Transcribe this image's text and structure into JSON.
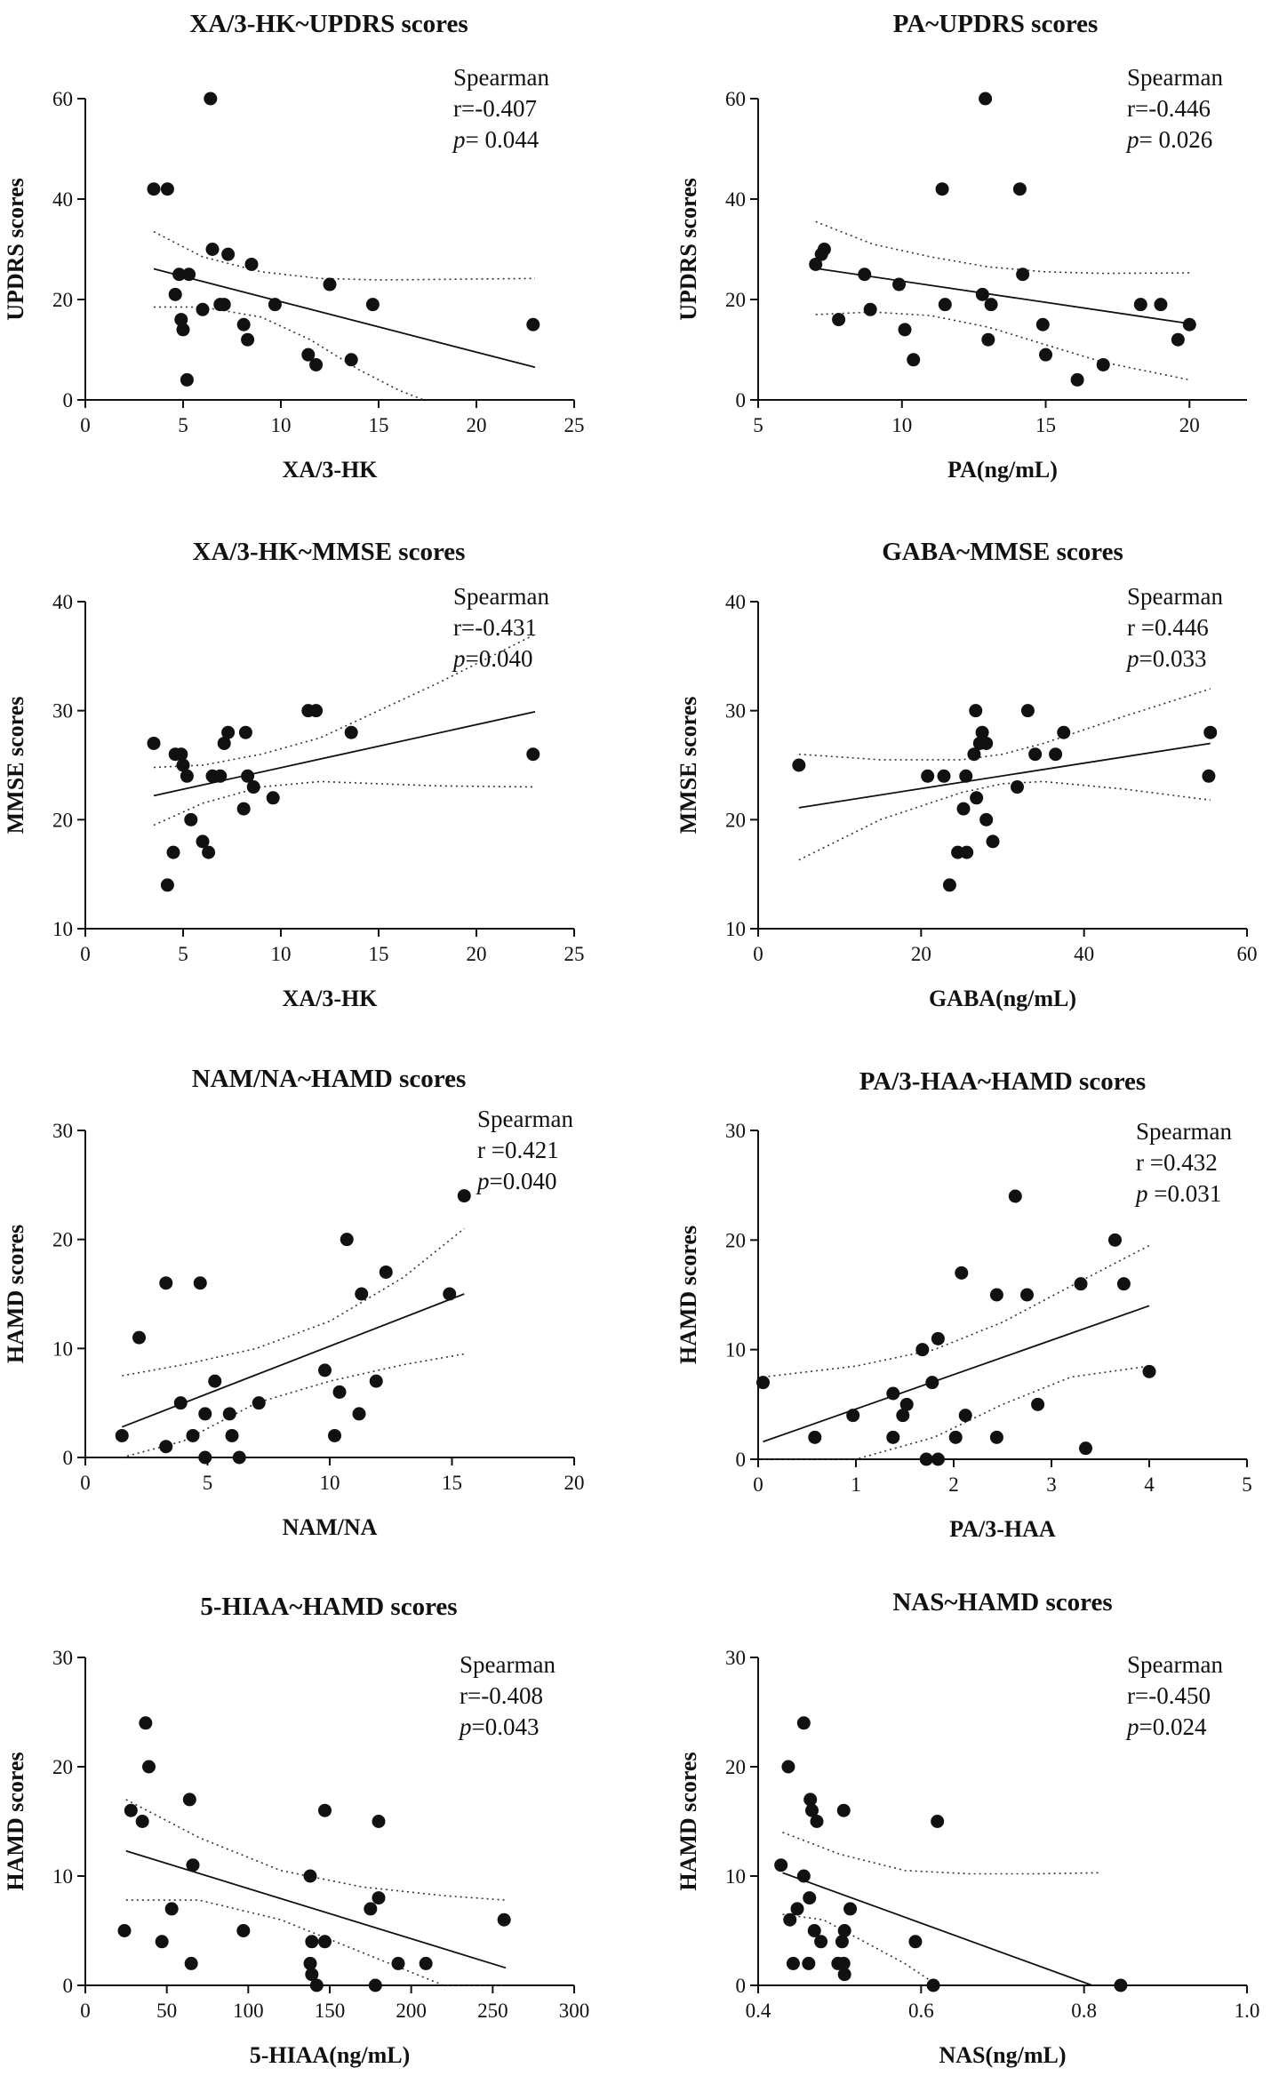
{
  "chart_data": [
    {
      "type": "scatter",
      "title": "XA/3-HK~UPDRS scores",
      "xlabel": "XA/3-HK",
      "ylabel": "UPDRS scores",
      "xlim": [
        0,
        25
      ],
      "ylim": [
        0,
        60
      ],
      "xticks": [
        "0",
        "5",
        "10",
        "15",
        "20",
        "25"
      ],
      "yticks": [
        "0",
        "20",
        "40",
        "60"
      ],
      "stats": {
        "method": "Spearman",
        "r": "r=-0.407",
        "p_label": "p",
        "p_value": "= 0.044"
      },
      "fit": {
        "x": [
          3.5,
          23
        ],
        "y": [
          26.1,
          6.5
        ]
      },
      "ci_upper": {
        "x": [
          3.5,
          6,
          9,
          12,
          15,
          18,
          23
        ],
        "y": [
          33.5,
          28.5,
          25.5,
          24.2,
          23.9,
          24,
          24.2
        ]
      },
      "ci_lower": {
        "x": [
          3.5,
          6,
          9,
          11.5,
          14,
          16,
          17.3
        ],
        "y": [
          18.5,
          18.5,
          16.5,
          12,
          6,
          2,
          0
        ]
      },
      "points": {
        "x": [
          3.5,
          4.2,
          6.4,
          6.5,
          7.3,
          8.5,
          4.6,
          4.8,
          5.3,
          4.9,
          5.0,
          5.2,
          6.0,
          6.9,
          7.1,
          8.1,
          8.3,
          9.7,
          11.4,
          11.8,
          12.5,
          13.6,
          14.7,
          22.9
        ],
        "y": [
          42,
          42,
          60,
          30,
          29,
          27,
          21,
          25,
          25,
          16,
          14,
          4,
          18,
          19,
          19,
          15,
          12,
          19,
          9,
          7,
          23,
          8,
          19,
          15
        ]
      }
    },
    {
      "type": "scatter",
      "title": "PA~UPDRS scores",
      "xlabel": "PA(ng/mL)",
      "ylabel": "UPDRS scores",
      "xlim": [
        5,
        22
      ],
      "ylim": [
        0,
        60
      ],
      "xticks": [
        "5",
        "10",
        "15",
        "20"
      ],
      "yticks": [
        "0",
        "20",
        "40",
        "60"
      ],
      "stats": {
        "method": "Spearman",
        "r": "r=-0.446",
        "p_label": "p",
        "p_value": "= 0.026"
      },
      "fit": {
        "x": [
          7,
          20
        ],
        "y": [
          26.2,
          15.2
        ]
      },
      "ci_upper": {
        "x": [
          7,
          9,
          11,
          13,
          15,
          17,
          20
        ],
        "y": [
          35.5,
          31,
          28.5,
          26.5,
          25.5,
          25.2,
          25.3
        ]
      },
      "ci_lower": {
        "x": [
          7,
          9,
          11,
          13,
          15,
          17,
          20
        ],
        "y": [
          17,
          17.5,
          16.8,
          14.5,
          11,
          7.5,
          4
        ]
      },
      "points": {
        "x": [
          12.9,
          11.4,
          14.1,
          7.3,
          7.2,
          7.0,
          8.7,
          9.9,
          12.8,
          14.2,
          7.8,
          8.9,
          10.1,
          10.4,
          11.5,
          13.1,
          13.0,
          14.9,
          15.0,
          16.1,
          17.0,
          18.3,
          19.0,
          19.6,
          20.0
        ],
        "y": [
          60,
          42,
          42,
          30,
          29,
          27,
          25,
          23,
          21,
          25,
          16,
          18,
          14,
          8,
          19,
          19,
          12,
          15,
          9,
          4,
          7,
          19,
          19,
          12,
          15
        ]
      }
    },
    {
      "type": "scatter",
      "title": "XA/3-HK~MMSE scores",
      "xlabel": "XA/3-HK",
      "ylabel": "MMSE scores",
      "xlim": [
        0,
        25
      ],
      "ylim": [
        10,
        40
      ],
      "xticks": [
        "0",
        "5",
        "10",
        "15",
        "20",
        "25"
      ],
      "yticks": [
        "10",
        "20",
        "30",
        "40"
      ],
      "stats": {
        "method": "Spearman",
        "r": "r=-0.431",
        "p_label": "p",
        "p_value": "=0.040"
      },
      "fit": {
        "x": [
          3.5,
          23
        ],
        "y": [
          22.2,
          29.9
        ]
      },
      "ci_upper": {
        "x": [
          3.5,
          6,
          9,
          12,
          15,
          18,
          23
        ],
        "y": [
          24.8,
          25,
          26,
          27.5,
          30,
          32.5,
          37
        ]
      },
      "ci_lower": {
        "x": [
          3.5,
          6,
          9,
          12,
          15,
          18,
          23
        ],
        "y": [
          19.5,
          21.5,
          23,
          23.5,
          23.3,
          23.1,
          23
        ]
      },
      "points": {
        "x": [
          3.5,
          4.6,
          4.9,
          5.0,
          5.2,
          6.5,
          6.9,
          7.1,
          7.3,
          8.2,
          8.3,
          8.6,
          9.6,
          11.4,
          11.8,
          13.6,
          22.9,
          4.5,
          5.4,
          6.0,
          6.3,
          8.1,
          4.2
        ],
        "y": [
          27,
          26,
          26,
          25,
          24,
          24,
          24,
          27,
          28,
          28,
          24,
          23,
          22,
          30,
          30,
          28,
          26,
          17,
          20,
          18,
          17,
          21,
          14
        ]
      }
    },
    {
      "type": "scatter",
      "title": "GABA~MMSE scores",
      "xlabel": "GABA(ng/mL)",
      "ylabel": "MMSE scores",
      "xlim": [
        0,
        60
      ],
      "ylim": [
        10,
        40
      ],
      "xticks": [
        "0",
        "20",
        "40",
        "60"
      ],
      "yticks": [
        "10",
        "20",
        "30",
        "40"
      ],
      "stats": {
        "method": "Spearman",
        "r": "r =0.446",
        "p_label": "p",
        "p_value": "=0.033"
      },
      "fit": {
        "x": [
          5,
          55.5
        ],
        "y": [
          21.1,
          27
        ]
      },
      "ci_upper": {
        "x": [
          5,
          15,
          25,
          30,
          35,
          45,
          55.5
        ],
        "y": [
          26,
          25.5,
          25.5,
          26,
          27,
          29.5,
          32
        ]
      },
      "ci_lower": {
        "x": [
          5,
          15,
          25,
          30,
          35,
          45,
          55.5
        ],
        "y": [
          16.3,
          20,
          22.5,
          23.3,
          23.5,
          22.8,
          21.8
        ]
      },
      "points": {
        "x": [
          5,
          20.8,
          22.8,
          26.7,
          27.5,
          27.2,
          28.0,
          33.1,
          34.0,
          36.5,
          37.5,
          55.5,
          55.3,
          31.8,
          26.5,
          26.8,
          25.5,
          25.2,
          28.0,
          28.8,
          24.5,
          25.6,
          23.5
        ],
        "y": [
          25,
          24,
          24,
          30,
          28,
          27,
          27,
          30,
          26,
          26,
          28,
          28,
          24,
          23,
          26,
          22,
          24,
          21,
          20,
          18,
          17,
          17,
          14
        ]
      }
    },
    {
      "type": "scatter",
      "title": "NAM/NA~HAMD scores",
      "xlabel": "NAM/NA",
      "ylabel": "HAMD scores",
      "xlim": [
        0,
        20
      ],
      "ylim": [
        0,
        30
      ],
      "xticks": [
        "0",
        "5",
        "10",
        "15",
        "20"
      ],
      "yticks": [
        "0",
        "10",
        "20",
        "30"
      ],
      "stats": {
        "method": "Spearman",
        "r": "r =0.421",
        "p_label": "p",
        "p_value": "=0.040"
      },
      "fit": {
        "x": [
          1.5,
          15.5
        ],
        "y": [
          2.8,
          15
        ]
      },
      "ci_upper": {
        "x": [
          1.5,
          4,
          7,
          10,
          13,
          15.5
        ],
        "y": [
          7.5,
          8.5,
          10,
          12.5,
          16.5,
          21
        ]
      },
      "ci_lower": {
        "x": [
          1.5,
          4,
          7,
          10,
          13,
          15.5
        ],
        "y": [
          -1.5,
          1.5,
          5,
          7,
          8.5,
          9.5
        ]
      },
      "points": {
        "x": [
          15.5,
          10.7,
          12.3,
          11.3,
          14.9,
          3.3,
          4.7,
          2.2,
          9.8,
          10.4,
          11.9,
          5.3,
          3.9,
          5.9,
          4.9,
          7.1,
          11.2,
          1.5,
          4.4,
          6.0,
          3.3,
          10.2,
          4.9,
          6.3
        ],
        "y": [
          24,
          20,
          17,
          15,
          15,
          16,
          16,
          11,
          8,
          6,
          7,
          7,
          5,
          4,
          4,
          5,
          4,
          2,
          2,
          2,
          1,
          2,
          0,
          0
        ]
      }
    },
    {
      "type": "scatter",
      "title": "PA/3-HAA~HAMD scores",
      "xlabel": "PA/3-HAA",
      "ylabel": "HAMD scores",
      "xlim": [
        0,
        5
      ],
      "ylim": [
        0,
        30
      ],
      "xticks": [
        "0",
        "1",
        "2",
        "3",
        "4",
        "5"
      ],
      "yticks": [
        "0",
        "10",
        "20",
        "30"
      ],
      "stats": {
        "method": "Spearman",
        "r": "r =0.432",
        "p_label": "p",
        "p_value": " =0.031"
      },
      "fit": {
        "x": [
          0.05,
          4.0
        ],
        "y": [
          1.6,
          14
        ]
      },
      "ci_upper": {
        "x": [
          0.05,
          1,
          1.8,
          2.5,
          3.2,
          4.0
        ],
        "y": [
          7.5,
          8.5,
          10,
          12.5,
          15.8,
          19.5
        ]
      },
      "ci_lower": {
        "x": [
          0.05,
          1,
          1.8,
          2.5,
          3.2,
          4.0
        ],
        "y": [
          -4,
          -1,
          2,
          5,
          7.5,
          8.5
        ]
      },
      "points": {
        "x": [
          2.63,
          3.65,
          2.08,
          3.74,
          2.44,
          2.75,
          3.3,
          1.68,
          1.84,
          0.05,
          1.78,
          4.0,
          1.38,
          1.52,
          1.48,
          0.97,
          2.12,
          2.86,
          0.58,
          1.38,
          2.02,
          2.44,
          3.35,
          1.72,
          1.84
        ],
        "y": [
          24,
          20,
          17,
          16,
          15,
          15,
          16,
          10,
          11,
          7,
          7,
          8,
          6,
          5,
          4,
          4,
          4,
          5,
          2,
          2,
          2,
          2,
          1,
          0,
          0
        ]
      }
    },
    {
      "type": "scatter",
      "title": "5-HIAA~HAMD scores",
      "xlabel": "5-HIAA(ng/mL)",
      "ylabel": "HAMD scores",
      "xlim": [
        0,
        300
      ],
      "ylim": [
        0,
        30
      ],
      "xticks": [
        "0",
        "50",
        "100",
        "150",
        "200",
        "250",
        "300"
      ],
      "yticks": [
        "0",
        "10",
        "20",
        "30"
      ],
      "stats": {
        "method": "Spearman",
        "r": "r=-0.408",
        "p_label": "p",
        "p_value": "=0.043"
      },
      "fit": {
        "x": [
          25,
          258
        ],
        "y": [
          12.3,
          1.6
        ]
      },
      "ci_upper": {
        "x": [
          25,
          70,
          120,
          170,
          220,
          258
        ],
        "y": [
          17,
          13.5,
          10.5,
          9,
          8.2,
          7.8
        ]
      },
      "ci_lower": {
        "x": [
          25,
          70,
          120,
          170,
          220,
          258
        ],
        "y": [
          7.8,
          7.8,
          6,
          3,
          -2,
          -5
        ]
      },
      "points": {
        "x": [
          37,
          39,
          28,
          35,
          64,
          147,
          180,
          138,
          66,
          53,
          24,
          97,
          47,
          139,
          147,
          175,
          180,
          257,
          65,
          138,
          192,
          209,
          139,
          142,
          178
        ],
        "y": [
          24,
          20,
          16,
          15,
          17,
          16,
          15,
          10,
          11,
          7,
          5,
          5,
          4,
          4,
          4,
          7,
          8,
          6,
          2,
          2,
          2,
          2,
          1,
          0,
          0
        ]
      }
    },
    {
      "type": "scatter",
      "title": "NAS~HAMD scores",
      "xlabel": "NAS(ng/mL)",
      "ylabel": "HAMD scores",
      "xlim": [
        0.4,
        1.0
      ],
      "ylim": [
        0,
        30
      ],
      "xticks": [
        "0.4",
        "0.6",
        "0.8",
        "1.0"
      ],
      "yticks": [
        "0",
        "10",
        "20",
        "30"
      ],
      "stats": {
        "method": "Spearman",
        "r": "r=-0.450",
        "p_label": "p",
        "p_value": "=0.024"
      },
      "fit": {
        "x": [
          0.43,
          0.81
        ],
        "y": [
          10.3,
          0
        ]
      },
      "ci_upper": {
        "x": [
          0.43,
          0.5,
          0.58,
          0.66,
          0.74,
          0.82
        ],
        "y": [
          14,
          12,
          10.5,
          10.2,
          10.2,
          10.3
        ]
      },
      "ci_lower": {
        "x": [
          0.43,
          0.48,
          0.53,
          0.58,
          0.62
        ],
        "y": [
          6.5,
          6,
          4,
          2,
          0
        ]
      },
      "points": {
        "x": [
          0.456,
          0.437,
          0.464,
          0.466,
          0.472,
          0.505,
          0.62,
          0.428,
          0.456,
          0.463,
          0.439,
          0.448,
          0.513,
          0.469,
          0.477,
          0.503,
          0.506,
          0.593,
          0.443,
          0.462,
          0.498,
          0.505,
          0.506,
          0.615,
          0.845
        ],
        "y": [
          24,
          20,
          17,
          16,
          15,
          16,
          15,
          11,
          10,
          8,
          6,
          7,
          7,
          5,
          4,
          4,
          5,
          4,
          2,
          2,
          2,
          2,
          1,
          0,
          0
        ]
      }
    }
  ]
}
